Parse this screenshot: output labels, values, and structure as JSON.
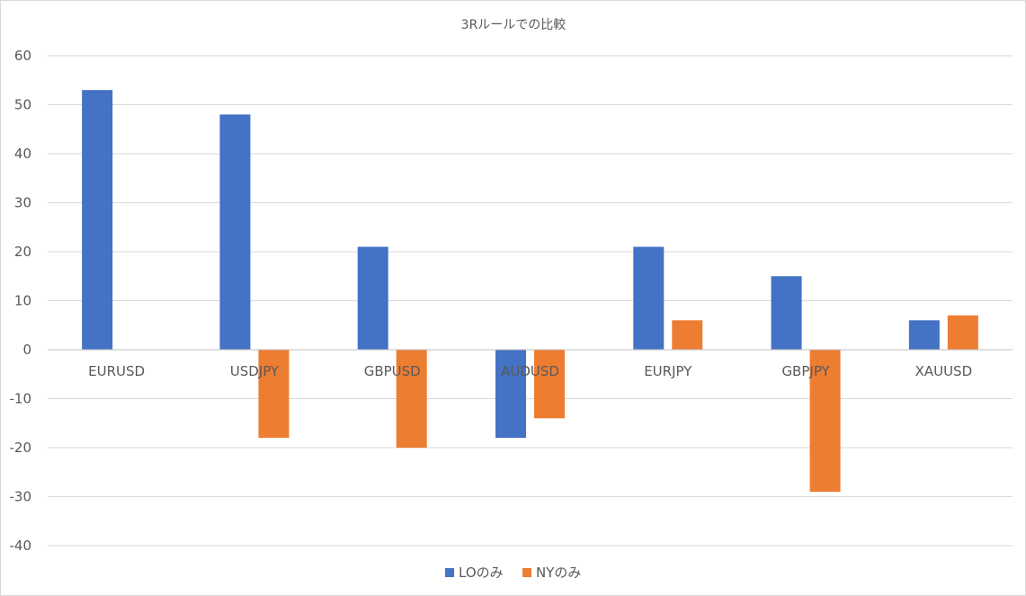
{
  "chart_data": {
    "type": "bar",
    "title": "3Rルールでの比較",
    "categories": [
      "EURUSD",
      "USDJPY",
      "GBPUSD",
      "AUDUSD",
      "EURJPY",
      "GBPJPY",
      "XAUUSD"
    ],
    "series": [
      {
        "name": "LOのみ",
        "color": "#4472C4",
        "values": [
          53,
          48,
          21,
          -18,
          21,
          15,
          6
        ]
      },
      {
        "name": "NYのみ",
        "color": "#ED7D31",
        "values": [
          0,
          -18,
          -20,
          -14,
          6,
          -29,
          7
        ]
      }
    ],
    "ylim": [
      -40,
      60
    ],
    "yticks": [
      60,
      50,
      40,
      30,
      20,
      10,
      0,
      -10,
      -20,
      -30,
      -40
    ],
    "xlabel": "",
    "ylabel": "",
    "grid": true,
    "legend": "bottom"
  }
}
